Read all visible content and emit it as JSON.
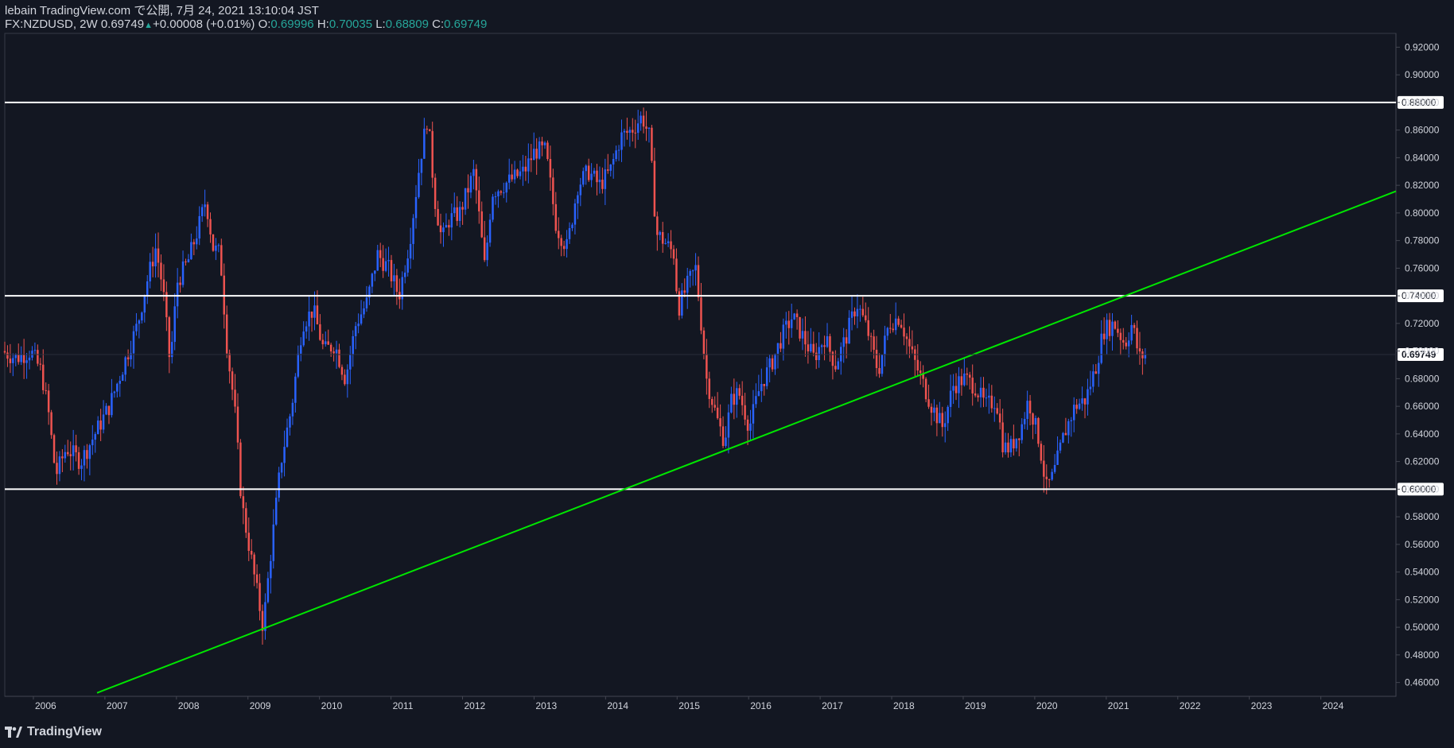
{
  "header": {
    "published": "lebain TradingView.com で公開, 7月 24, 2021 13:10:04 JST",
    "symbol_prefix": "FX:NZDUSD, 2W 0.69749",
    "change": "+0.00008 (+0.01%)",
    "o_label": "O:",
    "o_value": "0.69996",
    "h_label": "H:",
    "h_value": "0.70035",
    "l_label": "L:",
    "l_value": "0.68809",
    "c_label": "C:",
    "c_value": "0.69749"
  },
  "footer": {
    "brand": "TradingView"
  },
  "colors": {
    "background": "#131722",
    "up_candle": "#2962ff",
    "down_candle": "#ef5350",
    "trendline": "#00e600",
    "horizontal_lines": "#ffffff",
    "axis_text": "#d1d4dc",
    "price_highlight": "#ffffff"
  },
  "chart_data": {
    "type": "candlestick",
    "symbol": "FX:NZDUSD",
    "timeframe": "2W",
    "x_ticks": [
      "2006",
      "2007",
      "2008",
      "2009",
      "2010",
      "2011",
      "2012",
      "2013",
      "2014",
      "2015",
      "2016",
      "2017",
      "2018",
      "2019",
      "2020",
      "2021",
      "2022",
      "2023",
      "2024"
    ],
    "y_ticks": [
      "0.46000",
      "0.48000",
      "0.50000",
      "0.52000",
      "0.54000",
      "0.56000",
      "0.58000",
      "0.60000",
      "0.62000",
      "0.64000",
      "0.66000",
      "0.68000",
      "0.70000",
      "0.72000",
      "0.74000",
      "0.76000",
      "0.78000",
      "0.80000",
      "0.82000",
      "0.84000",
      "0.86000",
      "0.88000",
      "0.90000",
      "0.92000"
    ],
    "ylim": [
      0.45,
      0.93
    ],
    "xlim": [
      2005.6,
      2025.05
    ],
    "current_price": "0.69749",
    "horizontal_levels": [
      {
        "value": 0.88,
        "label": "0.88000"
      },
      {
        "value": 0.74,
        "label": "0.74000"
      },
      {
        "value": 0.6,
        "label": "0.60000"
      }
    ],
    "trendline": {
      "x1": 2006.89,
      "y1": 0.4525,
      "x2": 2025.05,
      "y2": 0.8157
    },
    "price_path": [
      [
        2005.6,
        0.7
      ],
      [
        2005.8,
        0.695
      ],
      [
        2006.0,
        0.7
      ],
      [
        2006.15,
        0.685
      ],
      [
        2006.25,
        0.655
      ],
      [
        2006.35,
        0.61
      ],
      [
        2006.5,
        0.63
      ],
      [
        2006.7,
        0.62
      ],
      [
        2006.9,
        0.64
      ],
      [
        2007.1,
        0.66
      ],
      [
        2007.3,
        0.69
      ],
      [
        2007.5,
        0.72
      ],
      [
        2007.6,
        0.745
      ],
      [
        2007.75,
        0.775
      ],
      [
        2007.85,
        0.745
      ],
      [
        2007.95,
        0.69
      ],
      [
        2008.05,
        0.75
      ],
      [
        2008.2,
        0.765
      ],
      [
        2008.35,
        0.79
      ],
      [
        2008.45,
        0.81
      ],
      [
        2008.55,
        0.775
      ],
      [
        2008.65,
        0.77
      ],
      [
        2008.75,
        0.7
      ],
      [
        2008.85,
        0.66
      ],
      [
        2008.95,
        0.59
      ],
      [
        2009.05,
        0.56
      ],
      [
        2009.15,
        0.53
      ],
      [
        2009.25,
        0.5
      ],
      [
        2009.35,
        0.55
      ],
      [
        2009.5,
        0.62
      ],
      [
        2009.65,
        0.66
      ],
      [
        2009.8,
        0.72
      ],
      [
        2009.95,
        0.73
      ],
      [
        2010.1,
        0.7
      ],
      [
        2010.25,
        0.705
      ],
      [
        2010.4,
        0.68
      ],
      [
        2010.55,
        0.72
      ],
      [
        2010.7,
        0.735
      ],
      [
        2010.85,
        0.77
      ],
      [
        2011.0,
        0.76
      ],
      [
        2011.15,
        0.74
      ],
      [
        2011.3,
        0.78
      ],
      [
        2011.45,
        0.84
      ],
      [
        2011.55,
        0.87
      ],
      [
        2011.65,
        0.81
      ],
      [
        2011.75,
        0.78
      ],
      [
        2011.85,
        0.795
      ],
      [
        2012.0,
        0.8
      ],
      [
        2012.2,
        0.83
      ],
      [
        2012.35,
        0.76
      ],
      [
        2012.45,
        0.815
      ],
      [
        2012.6,
        0.82
      ],
      [
        2012.75,
        0.825
      ],
      [
        2012.9,
        0.83
      ],
      [
        2013.05,
        0.845
      ],
      [
        2013.2,
        0.845
      ],
      [
        2013.35,
        0.79
      ],
      [
        2013.5,
        0.775
      ],
      [
        2013.65,
        0.82
      ],
      [
        2013.8,
        0.83
      ],
      [
        2013.95,
        0.82
      ],
      [
        2014.1,
        0.83
      ],
      [
        2014.25,
        0.855
      ],
      [
        2014.4,
        0.86
      ],
      [
        2014.55,
        0.87
      ],
      [
        2014.65,
        0.855
      ],
      [
        2014.75,
        0.785
      ],
      [
        2014.85,
        0.78
      ],
      [
        2015.0,
        0.77
      ],
      [
        2015.05,
        0.73
      ],
      [
        2015.2,
        0.75
      ],
      [
        2015.3,
        0.76
      ],
      [
        2015.45,
        0.68
      ],
      [
        2015.6,
        0.65
      ],
      [
        2015.7,
        0.635
      ],
      [
        2015.8,
        0.665
      ],
      [
        2015.9,
        0.67
      ],
      [
        2016.05,
        0.645
      ],
      [
        2016.2,
        0.675
      ],
      [
        2016.35,
        0.69
      ],
      [
        2016.5,
        0.71
      ],
      [
        2016.65,
        0.725
      ],
      [
        2016.8,
        0.71
      ],
      [
        2016.95,
        0.695
      ],
      [
        2017.1,
        0.71
      ],
      [
        2017.25,
        0.69
      ],
      [
        2017.4,
        0.71
      ],
      [
        2017.55,
        0.735
      ],
      [
        2017.7,
        0.715
      ],
      [
        2017.85,
        0.685
      ],
      [
        2018.0,
        0.72
      ],
      [
        2018.15,
        0.725
      ],
      [
        2018.3,
        0.7
      ],
      [
        2018.45,
        0.68
      ],
      [
        2018.6,
        0.66
      ],
      [
        2018.75,
        0.645
      ],
      [
        2018.9,
        0.675
      ],
      [
        2019.05,
        0.68
      ],
      [
        2019.2,
        0.675
      ],
      [
        2019.35,
        0.66
      ],
      [
        2019.5,
        0.665
      ],
      [
        2019.6,
        0.63
      ],
      [
        2019.7,
        0.63
      ],
      [
        2019.85,
        0.645
      ],
      [
        2019.95,
        0.665
      ],
      [
        2020.1,
        0.635
      ],
      [
        2020.2,
        0.6
      ],
      [
        2020.3,
        0.61
      ],
      [
        2020.45,
        0.64
      ],
      [
        2020.6,
        0.66
      ],
      [
        2020.75,
        0.665
      ],
      [
        2020.9,
        0.69
      ],
      [
        2021.0,
        0.715
      ],
      [
        2021.15,
        0.72
      ],
      [
        2021.3,
        0.705
      ],
      [
        2021.4,
        0.72
      ],
      [
        2021.5,
        0.695
      ],
      [
        2021.57,
        0.6975
      ]
    ]
  }
}
